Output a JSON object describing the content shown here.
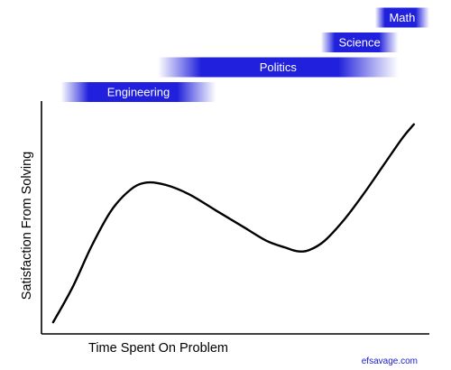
{
  "chart_data": {
    "type": "line",
    "xlabel": "Time Spent On Problem",
    "ylabel": "Satisfaction From Solving",
    "xlim": [
      0,
      100
    ],
    "ylim": [
      0,
      100
    ],
    "grid": false,
    "series": [
      {
        "values_xy": [
          [
            3,
            5
          ],
          [
            8,
            20
          ],
          [
            13,
            38
          ],
          [
            18,
            53
          ],
          [
            23,
            62
          ],
          [
            27,
            65
          ],
          [
            32,
            64
          ],
          [
            38,
            60
          ],
          [
            45,
            53
          ],
          [
            52,
            46
          ],
          [
            58,
            40
          ],
          [
            63,
            37
          ],
          [
            66,
            35.5
          ],
          [
            69,
            36
          ],
          [
            73,
            40
          ],
          [
            78,
            49
          ],
          [
            83,
            60
          ],
          [
            88,
            72
          ],
          [
            93,
            84
          ],
          [
            96,
            90
          ]
        ],
        "color": "#000000"
      }
    ],
    "bands": [
      {
        "label": "Engineering",
        "x_start": 5,
        "x_end": 45,
        "level": 1
      },
      {
        "label": "Politics",
        "x_start": 30,
        "x_end": 92,
        "level": 2
      },
      {
        "label": "Science",
        "x_start": 72,
        "x_end": 92,
        "level": 3
      },
      {
        "label": "Math",
        "x_start": 86,
        "x_end": 100,
        "level": 4
      }
    ],
    "band_color": "#2020dd"
  },
  "credit": "efsavage.com"
}
